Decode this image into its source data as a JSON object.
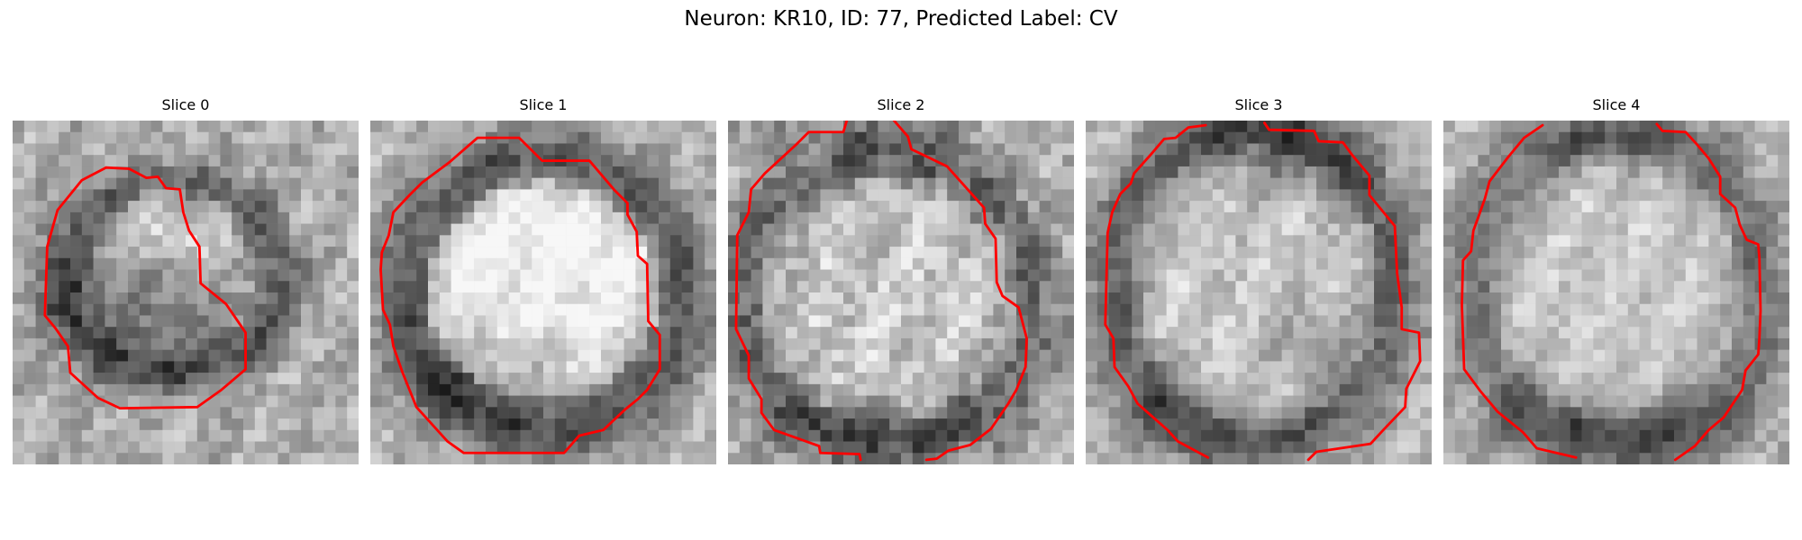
{
  "figure": {
    "title": "Neuron: KR10, ID: 77, Predicted Label: CV"
  },
  "panels": [
    {
      "title": "Slice 0",
      "colormap": "grayscale",
      "contour_color": "#ff0000"
    },
    {
      "title": "Slice 1",
      "colormap": "grayscale",
      "contour_color": "#ff0000"
    },
    {
      "title": "Slice 2",
      "colormap": "grayscale",
      "contour_color": "#ff0000"
    },
    {
      "title": "Slice 3",
      "colormap": "grayscale",
      "contour_color": "#ff0000"
    },
    {
      "title": "Slice 4",
      "colormap": "grayscale",
      "contour_color": "#ff0000"
    }
  ]
}
